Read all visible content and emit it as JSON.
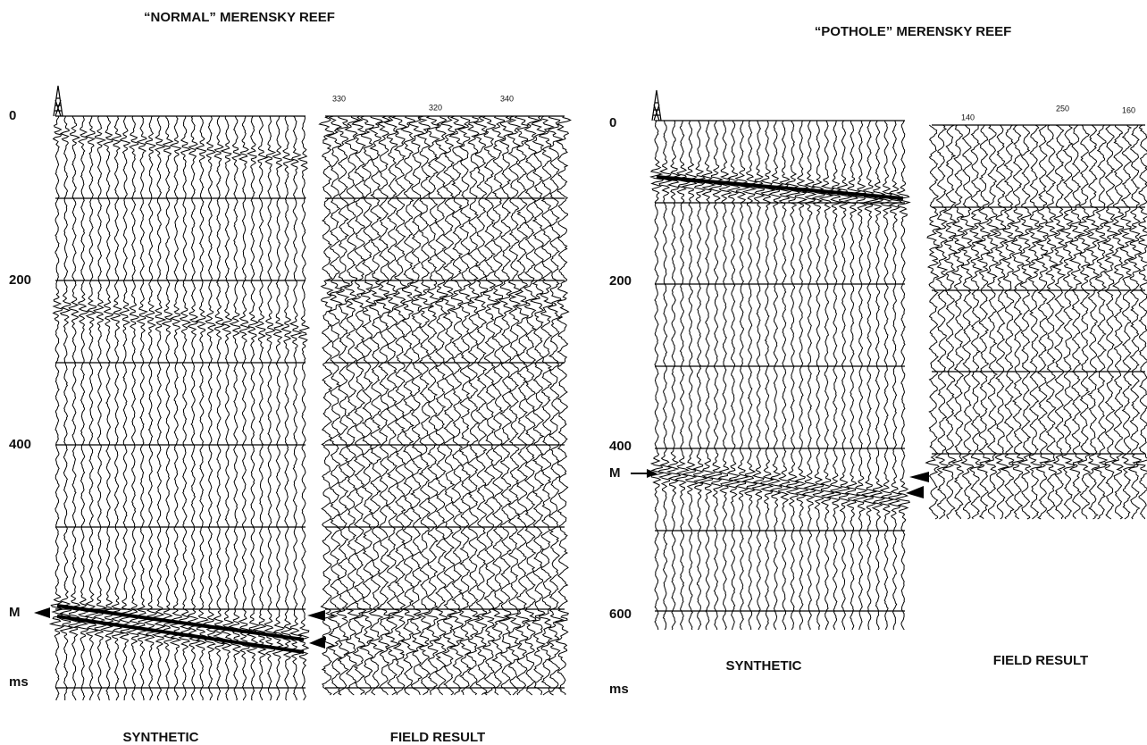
{
  "panels": [
    {
      "title": "“NORMAL” MERENSKY REEF",
      "time_ticks": [
        "0",
        "200",
        "400"
      ],
      "marker": "M",
      "unit": "ms",
      "trace_labels": [
        "330",
        "320",
        "340"
      ],
      "synthetic_label": "SYNTHETIC",
      "field_label": "FIELD RESULT"
    },
    {
      "title": "“POTHOLE” MERENSKY REEF",
      "time_ticks": [
        "0",
        "200",
        "400",
        "600"
      ],
      "marker": "M",
      "unit": "ms",
      "trace_labels": [
        "140",
        "250",
        "160"
      ],
      "synthetic_label": "SYNTHETIC",
      "field_label": "FIELD RESULT"
    }
  ]
}
